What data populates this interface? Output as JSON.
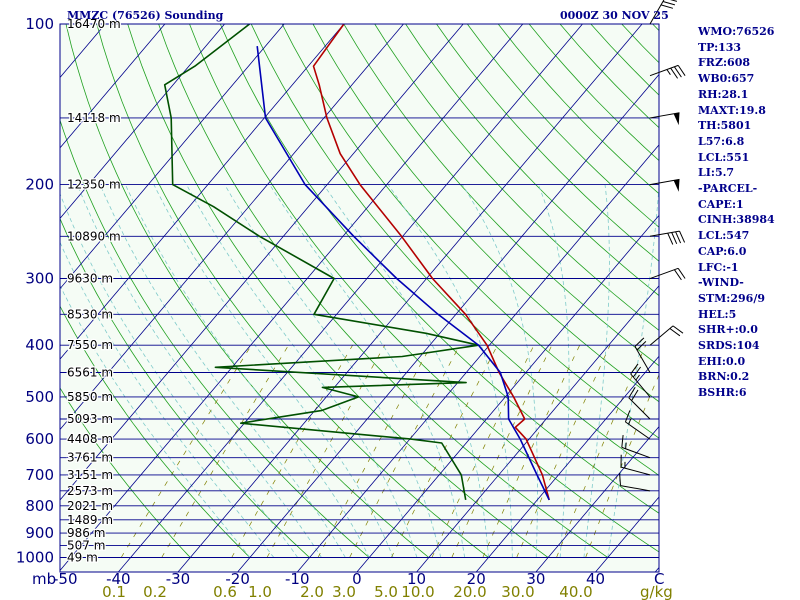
{
  "header": {
    "station": "MMZC (76526) Sounding",
    "time": "0000Z 30 NOV 25"
  },
  "colors": {
    "background": "#ffffff",
    "plot_background": "#f5fcf5",
    "isobar": "#00008b",
    "isotherm": "#00008b",
    "dry_adiabat": "#20a020",
    "moist_adiabat": "#7fcaca",
    "mixing_ratio": "#808000",
    "temperature": "#b40000",
    "dewpoint": "#005000",
    "parcel": "#0000b4",
    "wind_barb": "#000000",
    "text": "#00008b",
    "axis_label": "#000080",
    "mixing_label": "#808000"
  },
  "chart_data": {
    "type": "skew-t",
    "title": "MMZC (76526) Sounding",
    "valid_time": "0000Z 30 NOV 25",
    "pressure_unit": "mb",
    "temperature_unit": "C",
    "mixing_ratio_unit": "g/kg",
    "p_range": [
      1000,
      100
    ],
    "t_range": [
      -50,
      50
    ],
    "pressure_ticks": [
      100,
      200,
      300,
      400,
      500,
      600,
      700,
      800,
      900,
      1000
    ],
    "temperature_ticks": [
      -40,
      -30,
      -20,
      -10,
      0,
      10,
      20,
      30,
      40
    ],
    "mixing_ratio_ticks": [
      "0.1",
      "0.2",
      "0.6",
      "1.0",
      "2.0",
      "3.0",
      "5.0",
      "10.0",
      "20.0",
      "30.0",
      "40.0"
    ],
    "axis_labels": {
      "pressure": "mb",
      "temperature": "C",
      "mixing": "g/kg"
    },
    "first_temperature_tick": "-50",
    "heights": [
      {
        "p": 100,
        "label": "16470 m"
      },
      {
        "p": 150,
        "label": "14118 m"
      },
      {
        "p": 200,
        "label": "12350 m"
      },
      {
        "p": 250,
        "label": "10890 m"
      },
      {
        "p": 300,
        "label": "9630 m"
      },
      {
        "p": 350,
        "label": "8530 m"
      },
      {
        "p": 400,
        "label": "7550 m"
      },
      {
        "p": 450,
        "label": "6561 m"
      },
      {
        "p": 500,
        "label": "5850 m"
      },
      {
        "p": 550,
        "label": "5093 m"
      },
      {
        "p": 600,
        "label": "4408 m"
      },
      {
        "p": 650,
        "label": "3761 m"
      },
      {
        "p": 700,
        "label": "3151 m"
      },
      {
        "p": 750,
        "label": "2573 m"
      },
      {
        "p": 800,
        "label": "2021 m"
      },
      {
        "p": 850,
        "label": "1489 m"
      },
      {
        "p": 900,
        "label": "986 m"
      },
      {
        "p": 950,
        "label": "507 m"
      },
      {
        "p": 1000,
        "label": "49 m"
      }
    ],
    "series": [
      {
        "name": "temperature",
        "points": [
          {
            "p": 100,
            "t": -80.0
          },
          {
            "p": 120,
            "t": -79.1
          },
          {
            "p": 130,
            "t": -75.5
          },
          {
            "p": 150,
            "t": -69.5
          },
          {
            "p": 175,
            "t": -62.2
          },
          {
            "p": 200,
            "t": -54.5
          },
          {
            "p": 250,
            "t": -40.2
          },
          {
            "p": 300,
            "t": -29.0
          },
          {
            "p": 350,
            "t": -18.4
          },
          {
            "p": 400,
            "t": -10.4
          },
          {
            "p": 450,
            "t": -4.5
          },
          {
            "p": 500,
            "t": 1.4
          },
          {
            "p": 550,
            "t": 6.4
          },
          {
            "p": 570,
            "t": 6.0
          },
          {
            "p": 600,
            "t": 9.5
          },
          {
            "p": 700,
            "t": 17.3
          },
          {
            "p": 780,
            "t": 22.0
          }
        ]
      },
      {
        "name": "dewpoint",
        "points": [
          {
            "p": 100,
            "t": -95.8
          },
          {
            "p": 120,
            "t": -99.0
          },
          {
            "p": 130,
            "t": -101.4
          },
          {
            "p": 150,
            "t": -95.6
          },
          {
            "p": 200,
            "t": -85.9
          },
          {
            "p": 220,
            "t": -75.9
          },
          {
            "p": 250,
            "t": -64.0
          },
          {
            "p": 300,
            "t": -45.5
          },
          {
            "p": 350,
            "t": -43.8
          },
          {
            "p": 380,
            "t": -22.3
          },
          {
            "p": 400,
            "t": -11.8
          },
          {
            "p": 420,
            "t": -23.0
          },
          {
            "p": 440,
            "t": -52.8
          },
          {
            "p": 470,
            "t": -8.6
          },
          {
            "p": 480,
            "t": -32.0
          },
          {
            "p": 500,
            "t": -24.6
          },
          {
            "p": 530,
            "t": -28.8
          },
          {
            "p": 560,
            "t": -40.6
          },
          {
            "p": 600,
            "t": -9.8
          },
          {
            "p": 610,
            "t": -4.1
          },
          {
            "p": 700,
            "t": 3.7
          },
          {
            "p": 780,
            "t": 8.0
          }
        ]
      },
      {
        "name": "parcel",
        "points": [
          {
            "p": 110,
            "t": -91.4
          },
          {
            "p": 150,
            "t": -79.8
          },
          {
            "p": 200,
            "t": -63.7
          },
          {
            "p": 250,
            "t": -48.2
          },
          {
            "p": 300,
            "t": -35.0
          },
          {
            "p": 350,
            "t": -23.0
          },
          {
            "p": 400,
            "t": -11.8
          },
          {
            "p": 450,
            "t": -4.3
          },
          {
            "p": 500,
            "t": 0.5
          },
          {
            "p": 550,
            "t": 3.7
          },
          {
            "p": 600,
            "t": 8.5
          },
          {
            "p": 700,
            "t": 16.4
          },
          {
            "p": 780,
            "t": 22.0
          }
        ]
      }
    ],
    "winds": [
      {
        "p": 100,
        "dir": 30,
        "spd": 30
      },
      {
        "p": 125,
        "dir": 70,
        "spd": 35
      },
      {
        "p": 150,
        "dir": 80,
        "spd": 50
      },
      {
        "p": 200,
        "dir": 80,
        "spd": 50
      },
      {
        "p": 250,
        "dir": 80,
        "spd": 40
      },
      {
        "p": 300,
        "dir": 70,
        "spd": 20
      },
      {
        "p": 400,
        "dir": 50,
        "spd": 20
      },
      {
        "p": 450,
        "dir": 330,
        "spd": 20
      },
      {
        "p": 500,
        "dir": 320,
        "spd": 25
      },
      {
        "p": 550,
        "dir": 315,
        "spd": 20
      },
      {
        "p": 600,
        "dir": 305,
        "spd": 15
      },
      {
        "p": 650,
        "dir": 290,
        "spd": 15
      },
      {
        "p": 700,
        "dir": 285,
        "spd": 15
      },
      {
        "p": 750,
        "dir": 280,
        "spd": 10
      }
    ]
  },
  "indices": [
    "WMO:76526",
    "TP:133",
    "FRZ:608",
    "WB0:657",
    "RH:28.1",
    "MAXT:19.8",
    "TH:5801",
    "L57:6.8",
    "LCL:551",
    "LI:5.7",
    "-PARCEL-",
    "CAPE:1",
    "CINH:38984",
    "LCL:547",
    "CAP:6.0",
    "LFC:-1",
    "-WIND-",
    "STM:296/9",
    "HEL:5",
    "SHR+:0.0",
    "SRDS:104",
    "EHI:0.0",
    "BRN:0.2",
    "BSHR:6"
  ]
}
